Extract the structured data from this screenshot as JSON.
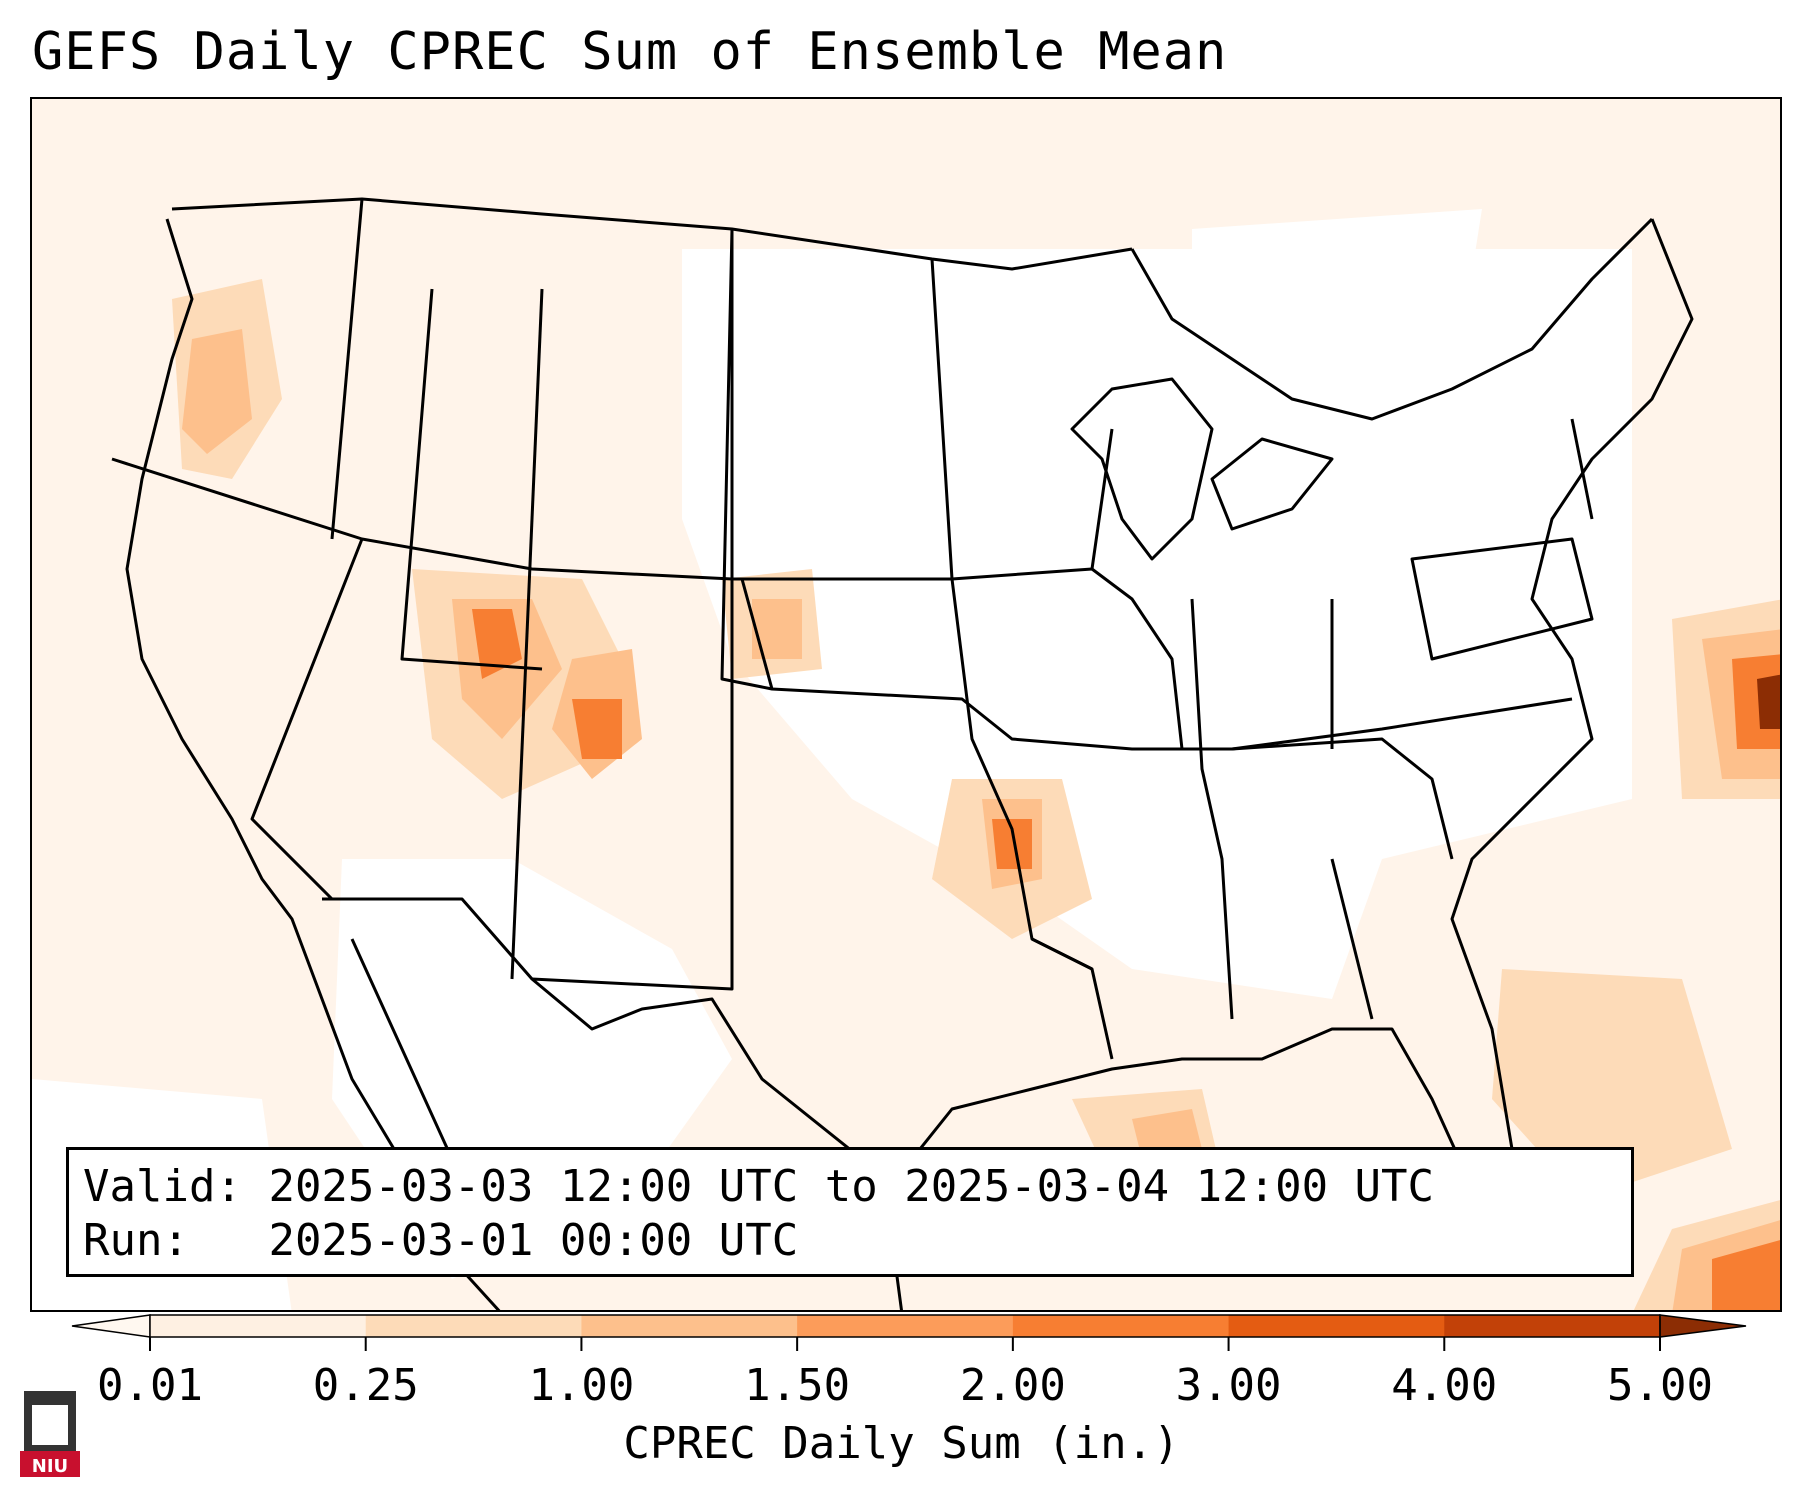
{
  "title": "GEFS Daily CPREC Sum of Ensemble Mean",
  "info": {
    "valid_label": "Valid:",
    "valid_value": "2025-03-03 12:00 UTC to 2025-03-04 12:00 UTC",
    "run_label": "Run:",
    "run_value": "2025-03-01 00:00 UTC"
  },
  "colorbar": {
    "label": "CPREC Daily Sum (in.)",
    "ticks": [
      "0.01",
      "0.25",
      "1.00",
      "1.50",
      "2.00",
      "3.00",
      "4.00",
      "5.00"
    ],
    "colors": [
      "#fef0e2",
      "#fddbb8",
      "#fdc08c",
      "#fc9c5a",
      "#f77e32",
      "#e45c12",
      "#c24108"
    ],
    "under_color": "#fff8f0",
    "over_color": "#8c2d04"
  },
  "logo": {
    "text": "NIU",
    "color": "#c8102e"
  },
  "colors": {
    "land_line": "#000000",
    "base_shade": "#fff4ea"
  }
}
